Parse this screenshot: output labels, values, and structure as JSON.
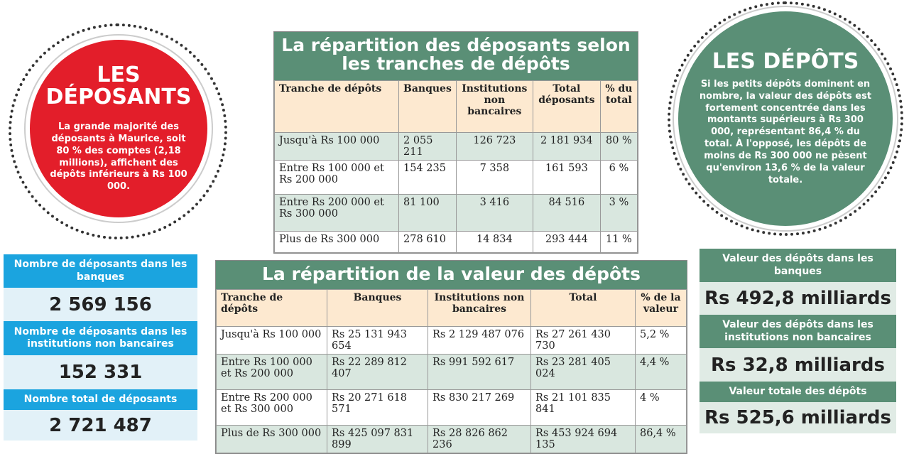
{
  "deposants": {
    "title_line1": "LES",
    "title_line2": "DÉPOSANTS",
    "text": "La grande majorité des déposants à Maurice, soit 80 % des comptes (2,18 millions), affichent des dépôts inférieurs à Rs 100 000.",
    "color": "#e31e2a"
  },
  "depots": {
    "title": "LES DÉPÔTS",
    "text": "Si les petits dépôts dominent en nombre, la valeur des dépôts est fortement concentrée dans les montants supérieurs à Rs 300 000, représentant 86,4 % du total. À l'opposé, les dépôts de moins de Rs 300 000 ne pèsent qu'environ 13,6 % de la valeur totale.",
    "color": "#5a8f76"
  },
  "table1": {
    "title_line1": "La répartition des déposants selon",
    "title_line2": "les tranches de dépôts",
    "headers": [
      "Tranche de dépôts",
      "Banques",
      "Institutions non bancaires",
      "Total déposants",
      "% du total"
    ],
    "rows": [
      [
        "Jusqu'à Rs 100 000",
        "2 055 211",
        "126 723",
        "2 181 934",
        "80 %"
      ],
      [
        "Entre Rs 100 000 et Rs 200 000",
        "154 235",
        "7 358",
        "161 593",
        "6 %"
      ],
      [
        "Entre Rs 200 000 et Rs 300 000",
        "81 100",
        "3 416",
        "84 516",
        "3 %"
      ],
      [
        "Plus de Rs 300 000",
        "278 610",
        "14 834",
        "293 444",
        "11 %"
      ]
    ]
  },
  "table2": {
    "title": "La répartition de la valeur des dépôts",
    "headers": [
      "Tranche de dépôts",
      "Banques",
      "Institutions non bancaires",
      "Total",
      "% de la valeur"
    ],
    "rows": [
      [
        "Jusqu'à Rs 100 000",
        "Rs 25 131 943 654",
        "Rs 2 129 487 076",
        "Rs 27 261 430 730",
        "5,2 %"
      ],
      [
        "Entre Rs 100 000 et Rs 200 000",
        "Rs 22 289 812 407",
        "Rs 991 592 617",
        "Rs 23 281 405 024",
        "4,4 %"
      ],
      [
        "Entre Rs 200 000 et Rs 300 000",
        "Rs 20 271 618 571",
        "Rs 830 217 269",
        "Rs 21 101 835 841",
        "4 %"
      ],
      [
        "Plus de Rs 300 000",
        "Rs 425 097 831 899",
        "Rs 28 826 862 236",
        "Rs 453 924 694 135",
        "86,4 %"
      ]
    ]
  },
  "left_stats": [
    {
      "label": "Nombre de déposants dans les banques",
      "value": "2 569 156"
    },
    {
      "label": "Nombre de déposants dans les institutions non bancaires",
      "value": "152 331"
    },
    {
      "label": "Nombre total de déposants",
      "value": "2 721 487"
    }
  ],
  "right_stats": [
    {
      "label": "Valeur des dépôts dans les banques",
      "value": "Rs 492,8 milliards"
    },
    {
      "label": "Valeur des dépôts dans les institutions non bancaires",
      "value": "Rs 32,8 milliards"
    },
    {
      "label": "Valeur totale des dépôts",
      "value": "Rs 525,6 milliards"
    }
  ]
}
